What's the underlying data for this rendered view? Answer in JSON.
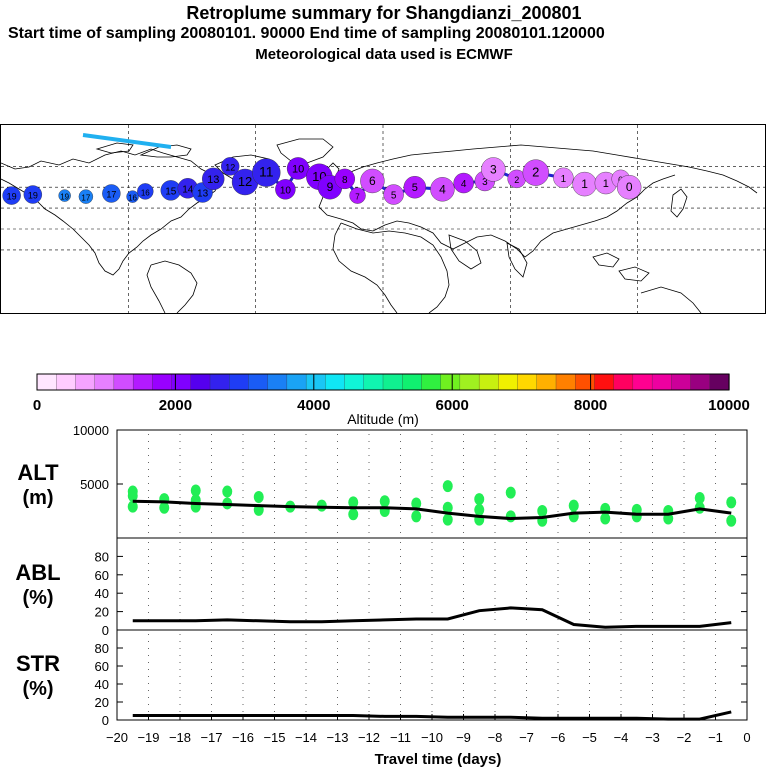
{
  "header": {
    "title": "Retroplume summary for Shangdianzi_200801",
    "sampling": "Start time of sampling 20080101. 90000     End time of sampling 20080101.120000",
    "met": "Meteorological data used is ECMWF"
  },
  "colors": {
    "palette": [
      "#ffe6ff",
      "#ffccff",
      "#f5a3ff",
      "#e680ff",
      "#d14dff",
      "#b31aff",
      "#9900ff",
      "#8000ff",
      "#5500ee",
      "#3322ee",
      "#1f3df5",
      "#1a5cf5",
      "#1a80f5",
      "#1aa3f5",
      "#1ac6f5",
      "#10e6f5",
      "#10f5d8",
      "#10f5b0",
      "#10f090",
      "#10f070",
      "#30f040",
      "#70f020",
      "#a0f020",
      "#c8f010",
      "#f0f000",
      "#ffd800",
      "#ffb000",
      "#ff8000",
      "#ff5000",
      "#ff1010",
      "#ff0060",
      "#ff0090",
      "#ee00a0",
      "#cc0099",
      "#990080",
      "#660060"
    ],
    "plume_track": "#2020d0",
    "track_light": "#20b0f0",
    "alt_points": "#22ee55",
    "line": "#000000"
  },
  "colorbar": {
    "tick_labels": [
      "0",
      "2000",
      "4000",
      "6000",
      "8000",
      "10000"
    ],
    "axis_title": "Altitude (m)",
    "min": 0,
    "max": 10000
  },
  "chart_data": [
    {
      "type": "scatter",
      "name": "ALT",
      "ylabel_line1": "ALT",
      "ylabel_line2": "(m)",
      "yticks": [
        "10000",
        "5000"
      ],
      "ylim": [
        0,
        10000
      ],
      "x": [
        -19.5,
        -18.5,
        -17.5,
        -16.5,
        -15.5,
        -14.5,
        -13.5,
        -12.5,
        -11.5,
        -10.5,
        -9.5,
        -8.5,
        -7.5,
        -6.5,
        -5.5,
        -4.5,
        -3.5,
        -2.5,
        -1.5,
        -0.5
      ],
      "mean_altitude": [
        3400,
        3350,
        3200,
        3100,
        3000,
        2900,
        2850,
        2800,
        2800,
        2700,
        2300,
        2000,
        1800,
        1900,
        2300,
        2400,
        2200,
        2200,
        2700,
        2300
      ],
      "points": [
        {
          "x": -19.5,
          "y": 3900
        },
        {
          "x": -19.5,
          "y": 2900
        },
        {
          "x": -19.5,
          "y": 4300
        },
        {
          "x": -18.5,
          "y": 3600
        },
        {
          "x": -18.5,
          "y": 2800
        },
        {
          "x": -17.5,
          "y": 4400
        },
        {
          "x": -17.5,
          "y": 3500
        },
        {
          "x": -17.5,
          "y": 2900
        },
        {
          "x": -16.5,
          "y": 4300
        },
        {
          "x": -16.5,
          "y": 3200
        },
        {
          "x": -15.5,
          "y": 3800
        },
        {
          "x": -15.5,
          "y": 2600
        },
        {
          "x": -14.5,
          "y": 2900
        },
        {
          "x": -13.5,
          "y": 3000
        },
        {
          "x": -12.5,
          "y": 3300
        },
        {
          "x": -12.5,
          "y": 2200
        },
        {
          "x": -11.5,
          "y": 3400
        },
        {
          "x": -11.5,
          "y": 2500
        },
        {
          "x": -10.5,
          "y": 3200
        },
        {
          "x": -10.5,
          "y": 2000
        },
        {
          "x": -9.5,
          "y": 2800
        },
        {
          "x": -9.5,
          "y": 1700
        },
        {
          "x": -9.5,
          "y": 4800
        },
        {
          "x": -8.5,
          "y": 3600
        },
        {
          "x": -8.5,
          "y": 2600
        },
        {
          "x": -8.5,
          "y": 1700
        },
        {
          "x": -7.5,
          "y": 4200
        },
        {
          "x": -7.5,
          "y": 2000
        },
        {
          "x": -6.5,
          "y": 2500
        },
        {
          "x": -6.5,
          "y": 1600
        },
        {
          "x": -5.5,
          "y": 3000
        },
        {
          "x": -5.5,
          "y": 2000
        },
        {
          "x": -4.5,
          "y": 2700
        },
        {
          "x": -4.5,
          "y": 1800
        },
        {
          "x": -3.5,
          "y": 2600
        },
        {
          "x": -3.5,
          "y": 2000
        },
        {
          "x": -2.5,
          "y": 2500
        },
        {
          "x": -2.5,
          "y": 1800
        },
        {
          "x": -1.5,
          "y": 3700
        },
        {
          "x": -1.5,
          "y": 2800
        },
        {
          "x": -0.5,
          "y": 3300
        },
        {
          "x": -0.5,
          "y": 1600
        }
      ]
    },
    {
      "type": "line",
      "name": "ABL",
      "ylabel_line1": "ABL",
      "ylabel_line2": "(%)",
      "yticks": [
        "80",
        "60",
        "40",
        "20",
        "0"
      ],
      "ylim": [
        0,
        100
      ],
      "x": [
        -19.5,
        -18.5,
        -17.5,
        -16.5,
        -15.5,
        -14.5,
        -13.5,
        -12.5,
        -11.5,
        -10.5,
        -9.5,
        -8.5,
        -7.5,
        -6.5,
        -5.5,
        -4.5,
        -3.5,
        -2.5,
        -1.5,
        -0.5
      ],
      "values": [
        10,
        10,
        10,
        11,
        10,
        9,
        9,
        10,
        11,
        12,
        12,
        21,
        24,
        22,
        6,
        3,
        4,
        4,
        4,
        8
      ]
    },
    {
      "type": "line",
      "name": "STR",
      "ylabel_line1": "STR",
      "ylabel_line2": "(%)",
      "yticks": [
        "80",
        "60",
        "40",
        "20",
        "0"
      ],
      "ylim": [
        0,
        100
      ],
      "x": [
        -19.5,
        -18.5,
        -17.5,
        -16.5,
        -15.5,
        -14.5,
        -13.5,
        -12.5,
        -11.5,
        -10.5,
        -9.5,
        -8.5,
        -7.5,
        -6.5,
        -5.5,
        -4.5,
        -3.5,
        -2.5,
        -1.5,
        -0.5
      ],
      "values": [
        5,
        5,
        5,
        5,
        5,
        5,
        5,
        5,
        4,
        4,
        3,
        3,
        3,
        2,
        2,
        2,
        2,
        1,
        1,
        9
      ]
    }
  ],
  "xaxis": {
    "labels": [
      "−20",
      "−19",
      "−18",
      "−17",
      "−16",
      "−15",
      "−14",
      "−13",
      "−12",
      "−11",
      "−10",
      "−9",
      "−8",
      "−7",
      "−6",
      "−5",
      "−4",
      "−3",
      "−2",
      "−1",
      "0"
    ],
    "title": "Travel time (days)",
    "min": -20,
    "max": 0
  },
  "map": {
    "markers": [
      "19",
      "17",
      "16",
      "15",
      "14",
      "13",
      "12",
      "11",
      "10",
      "9",
      "8",
      "7",
      "6",
      "5",
      "4",
      "3",
      "2",
      "1",
      "0"
    ],
    "circles": [
      {
        "lon": -175,
        "lat": 32,
        "size": 9,
        "alt": 2800,
        "label": "19"
      },
      {
        "lon": -165,
        "lat": 33,
        "size": 9,
        "alt": 2900,
        "label": "19"
      },
      {
        "lon": -150,
        "lat": 32,
        "size": 6,
        "alt": 3600,
        "label": "19"
      },
      {
        "lon": -140,
        "lat": 31,
        "size": 7,
        "alt": 3400,
        "label": "17"
      },
      {
        "lon": -128,
        "lat": 34,
        "size": 9,
        "alt": 3300,
        "label": "17"
      },
      {
        "lon": -118,
        "lat": 31,
        "size": 6,
        "alt": 3200,
        "label": "16"
      },
      {
        "lon": -112,
        "lat": 36,
        "size": 8,
        "alt": 3000,
        "label": "16"
      },
      {
        "lon": -100,
        "lat": 37,
        "size": 10,
        "alt": 2900,
        "label": "15"
      },
      {
        "lon": -92,
        "lat": 39,
        "size": 10,
        "alt": 2700,
        "label": "14"
      },
      {
        "lon": -85,
        "lat": 35,
        "size": 10,
        "alt": 2800,
        "label": "13"
      },
      {
        "lon": -80,
        "lat": 48,
        "size": 11,
        "alt": 2600,
        "label": "13"
      },
      {
        "lon": -72,
        "lat": 60,
        "size": 9,
        "alt": 2700,
        "label": "12"
      },
      {
        "lon": -65,
        "lat": 45,
        "size": 13,
        "alt": 2700,
        "label": "12"
      },
      {
        "lon": -55,
        "lat": 54,
        "size": 14,
        "alt": 2500,
        "label": "11"
      },
      {
        "lon": -46,
        "lat": 38,
        "size": 10,
        "alt": 2100,
        "label": "10"
      },
      {
        "lon": -40,
        "lat": 58,
        "size": 11,
        "alt": 2000,
        "label": "10"
      },
      {
        "lon": -30,
        "lat": 50,
        "size": 13,
        "alt": 2200,
        "label": "10"
      },
      {
        "lon": -25,
        "lat": 40,
        "size": 12,
        "alt": 2100,
        "label": "9"
      },
      {
        "lon": -18,
        "lat": 48,
        "size": 10,
        "alt": 1800,
        "label": "8"
      },
      {
        "lon": -12,
        "lat": 32,
        "size": 8,
        "alt": 1400,
        "label": "7"
      },
      {
        "lon": -5,
        "lat": 46,
        "size": 12,
        "alt": 1300,
        "label": "6"
      },
      {
        "lon": 5,
        "lat": 33,
        "size": 10,
        "alt": 1200,
        "label": "5"
      },
      {
        "lon": 15,
        "lat": 40,
        "size": 11,
        "alt": 1400,
        "label": "5"
      },
      {
        "lon": 28,
        "lat": 38,
        "size": 12,
        "alt": 1200,
        "label": "4"
      },
      {
        "lon": 38,
        "lat": 44,
        "size": 10,
        "alt": 1500,
        "label": "4"
      },
      {
        "lon": 48,
        "lat": 46,
        "size": 10,
        "alt": 1300,
        "label": "3"
      },
      {
        "lon": 52,
        "lat": 57,
        "size": 12,
        "alt": 1100,
        "label": "3"
      },
      {
        "lon": 63,
        "lat": 48,
        "size": 9,
        "alt": 1300,
        "label": "2"
      },
      {
        "lon": 72,
        "lat": 54,
        "size": 13,
        "alt": 1200,
        "label": "2"
      },
      {
        "lon": 85,
        "lat": 49,
        "size": 10,
        "alt": 1000,
        "label": "1"
      },
      {
        "lon": 95,
        "lat": 43,
        "size": 12,
        "alt": 900,
        "label": "1"
      },
      {
        "lon": 105,
        "lat": 44,
        "size": 11,
        "alt": 1000,
        "label": "1"
      },
      {
        "lon": 112,
        "lat": 48,
        "size": 9,
        "alt": 900,
        "label": "0"
      },
      {
        "lon": 116,
        "lat": 40,
        "size": 12,
        "alt": 1100,
        "label": "0"
      }
    ]
  }
}
